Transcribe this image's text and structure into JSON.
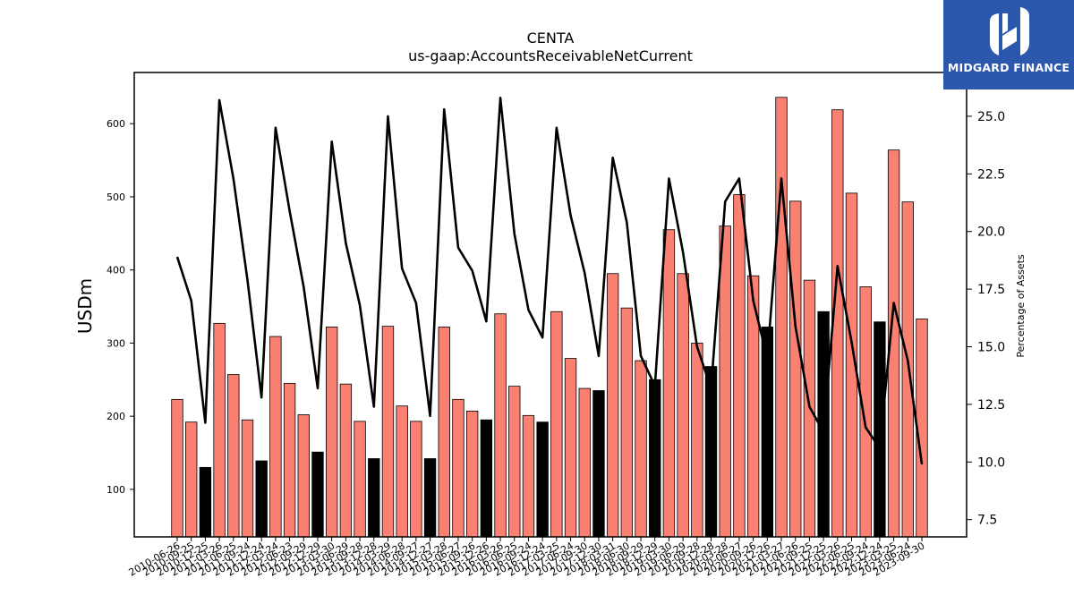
{
  "brand": {
    "name": "MIDGARD FINANCE",
    "color": "#2b57ad"
  },
  "chart_data": {
    "type": "bar",
    "title": "CENTA",
    "subtitle": "us-gaap:AccountsReceivableNetCurrent",
    "ylabel": "USDm",
    "y2label": "Percentage of Assets",
    "ylim": [
      35,
      670
    ],
    "y2lim": [
      6.75,
      26.9
    ],
    "yticks": [
      100,
      200,
      300,
      400,
      500,
      600
    ],
    "y2ticks": [
      "7.5",
      "10.0",
      "12.5",
      "15.0",
      "17.5",
      "20.0",
      "22.5",
      "25.0"
    ],
    "colors": {
      "bar_default": "#fa8072",
      "bar_highlight": "#000000",
      "line": "#000000"
    },
    "categories": [
      "2010-06-26",
      "2010-09-25",
      "2010-12-25",
      "2011-03-26",
      "2011-06-25",
      "2011-09-24",
      "2011-12-24",
      "2012-03-24",
      "2012-06-23",
      "2012-09-29",
      "2012-12-29",
      "2013-03-30",
      "2013-06-29",
      "2013-09-28",
      "2013-12-28",
      "2014-03-29",
      "2014-06-28",
      "2014-09-27",
      "2014-12-27",
      "2015-03-28",
      "2015-06-27",
      "2015-09-26",
      "2015-12-26",
      "2016-03-26",
      "2016-06-25",
      "2016-09-24",
      "2016-12-24",
      "2017-03-25",
      "2017-06-24",
      "2017-09-30",
      "2017-12-30",
      "2018-03-31",
      "2018-06-30",
      "2018-09-29",
      "2018-12-29",
      "2019-03-30",
      "2019-06-29",
      "2019-09-28",
      "2019-12-28",
      "2020-03-28",
      "2020-06-27",
      "2020-09-26",
      "2020-12-26",
      "2021-03-27",
      "2021-06-26",
      "2021-09-25",
      "2021-12-25",
      "2022-03-26",
      "2022-06-25",
      "2022-09-24",
      "2022-12-24",
      "2023-03-25",
      "2023-06-24",
      "2023-09-30"
    ],
    "series": [
      {
        "type": "bar",
        "values": [
          223,
          192,
          130,
          327,
          257,
          195,
          139,
          309,
          245,
          202,
          151,
          322,
          244,
          193,
          142,
          323,
          214,
          193,
          142,
          322,
          223,
          207,
          195,
          340,
          241,
          201,
          192,
          343,
          279,
          238,
          235,
          395,
          348,
          276,
          250,
          455,
          395,
          300,
          268,
          460,
          503,
          392,
          322,
          636,
          494,
          386,
          343,
          619,
          505,
          377,
          329,
          564,
          493,
          333
        ],
        "highlight": [
          false,
          false,
          true,
          false,
          false,
          false,
          true,
          false,
          false,
          false,
          true,
          false,
          false,
          false,
          true,
          false,
          false,
          false,
          true,
          false,
          false,
          false,
          true,
          false,
          false,
          false,
          true,
          false,
          false,
          false,
          true,
          false,
          false,
          false,
          true,
          false,
          false,
          false,
          true,
          false,
          false,
          false,
          true,
          false,
          false,
          false,
          true,
          false,
          false,
          false,
          true,
          false,
          false,
          false
        ]
      },
      {
        "type": "line",
        "axis": "right",
        "values": [
          18.9,
          17.0,
          11.7,
          25.7,
          22.3,
          17.9,
          12.8,
          24.5,
          20.9,
          17.6,
          13.2,
          23.9,
          19.5,
          16.8,
          12.4,
          25.0,
          18.4,
          16.9,
          12.0,
          25.3,
          19.3,
          18.3,
          16.1,
          25.8,
          19.9,
          16.6,
          15.4,
          24.5,
          20.7,
          18.2,
          14.6,
          23.2,
          20.4,
          14.6,
          13.3,
          22.3,
          19.1,
          15.0,
          13.2,
          21.3,
          22.3,
          17.0,
          14.5,
          22.3,
          15.9,
          12.4,
          11.3,
          18.5,
          15.2,
          11.5,
          10.6,
          16.9,
          14.4,
          9.9
        ]
      }
    ]
  }
}
